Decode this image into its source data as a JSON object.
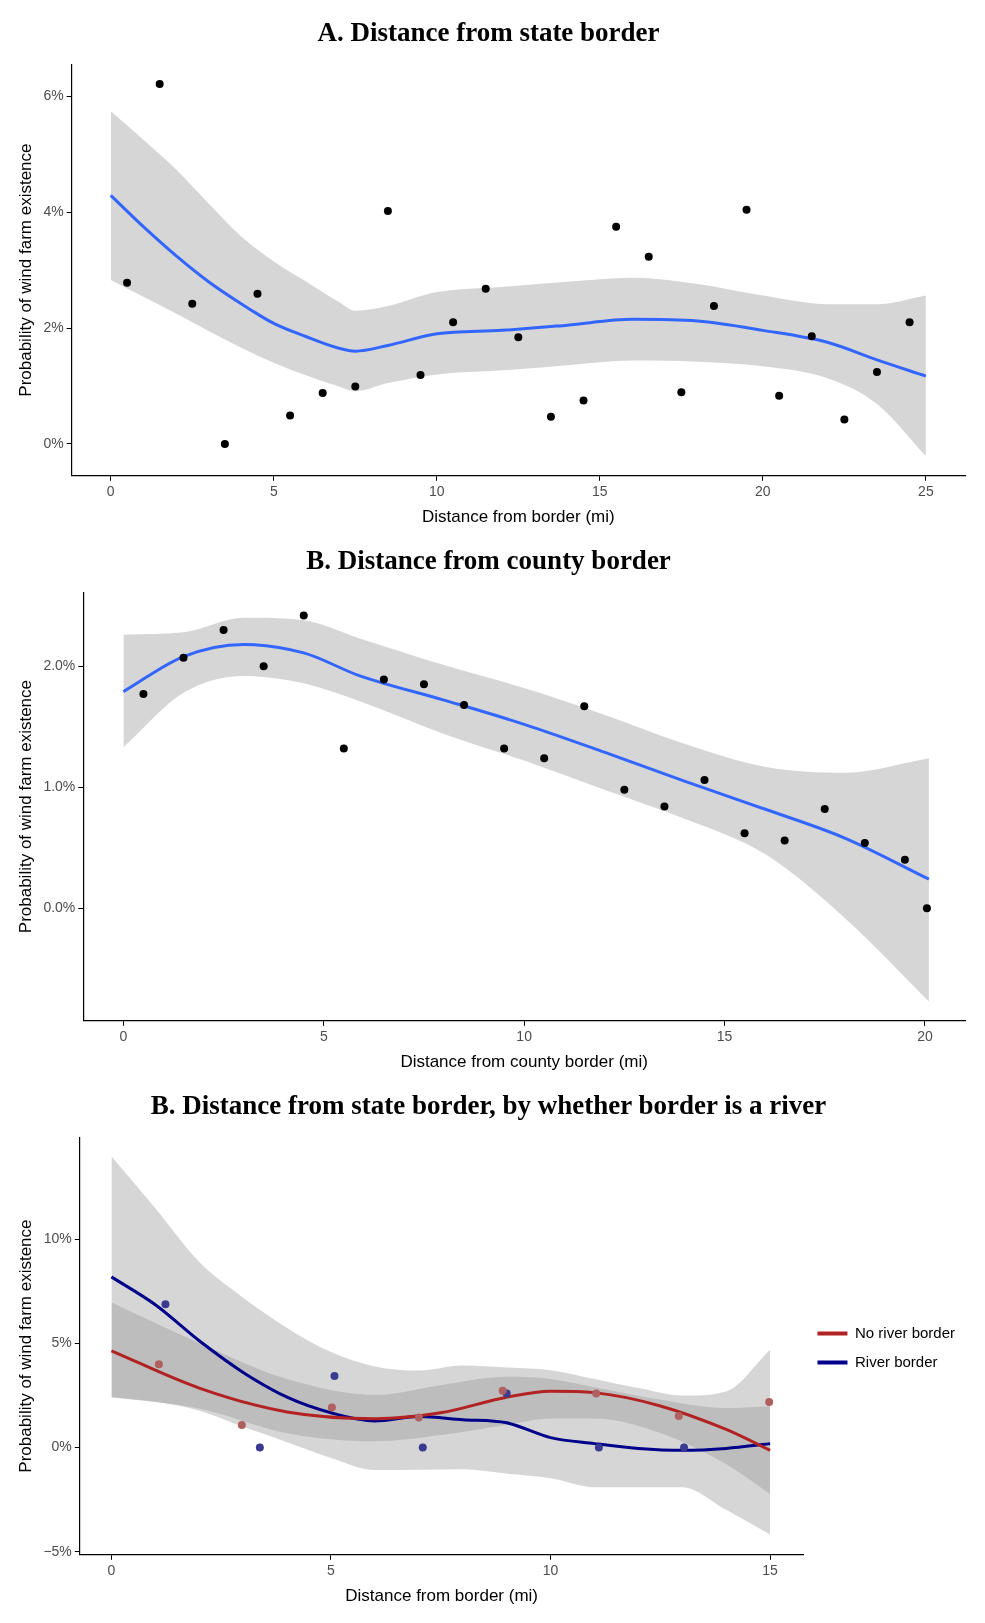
{
  "chart_data": [
    {
      "type": "scatter",
      "title": "A. Distance from state border",
      "xlabel": "Distance from border (mi)",
      "ylabel": "Probability of wind farm existence",
      "xlim": [
        -1.2,
        26.2
      ],
      "xticks": [
        0,
        5,
        10,
        15,
        20,
        25
      ],
      "ylim": [
        -0.55,
        6.55
      ],
      "yticks": [
        {
          "value": 0,
          "label": "0%"
        },
        {
          "value": 2,
          "label": "2%"
        },
        {
          "value": 4,
          "label": "4%"
        },
        {
          "value": 6,
          "label": "6%"
        }
      ],
      "series": [
        {
          "type": "scatter",
          "marker": "circle",
          "color": "#000000",
          "x": [
            0.5,
            1.5,
            2.5,
            3.5,
            4.5,
            5.5,
            6.5,
            7.5,
            8.5,
            9.5,
            10.5,
            11.5,
            12.5,
            13.5,
            14.5,
            15.5,
            16.5,
            17.5,
            18.5,
            19.5,
            20.5,
            21.5,
            22.5,
            23.5,
            24.5
          ],
          "values": [
            2.78,
            6.21,
            2.42,
            0,
            2.59,
            0.49,
            0.88,
            0.99,
            4.02,
            1.19,
            2.1,
            2.68,
            1.84,
            0.47,
            0.75,
            3.75,
            3.23,
            0.89,
            2.38,
            4.04,
            0.83,
            1.86,
            0.42,
            1.24,
            2.1
          ]
        },
        {
          "type": "line",
          "color": "#3366ff",
          "x": [
            0,
            1,
            2,
            3,
            4,
            5,
            6,
            7,
            7.5,
            8.5,
            10,
            12,
            14,
            16,
            18,
            20,
            22,
            23.5,
            25
          ],
          "values": [
            4.29,
            3.75,
            3.25,
            2.8,
            2.42,
            2.08,
            1.85,
            1.65,
            1.6,
            1.7,
            1.9,
            1.96,
            2.05,
            2.15,
            2.12,
            1.96,
            1.75,
            1.45,
            1.17
          ],
          "upper": [
            5.74,
            5.25,
            4.74,
            4.15,
            3.58,
            3.15,
            2.8,
            2.45,
            2.3,
            2.38,
            2.62,
            2.71,
            2.8,
            2.87,
            2.76,
            2.56,
            2.41,
            2.41,
            2.56
          ],
          "lower": [
            2.83,
            2.54,
            2.25,
            1.95,
            1.66,
            1.4,
            1.18,
            0.99,
            0.91,
            1.05,
            1.2,
            1.27,
            1.36,
            1.44,
            1.42,
            1.34,
            1.13,
            0.69,
            -0.21
          ]
        }
      ]
    },
    {
      "type": "scatter",
      "title": "B. Distance from county border",
      "xlabel": "Distance from county border (mi)",
      "ylabel": "Probability of wind farm existence",
      "xlim": [
        -1,
        21
      ],
      "xticks": [
        0,
        5,
        10,
        15,
        20
      ],
      "ylim": [
        -0.93,
        2.61
      ],
      "yticks": [
        {
          "value": 0,
          "label": "0.0%"
        },
        {
          "value": 1,
          "label": "1.0%"
        },
        {
          "value": 2,
          "label": "2.0%"
        }
      ],
      "series": [
        {
          "type": "scatter",
          "marker": "circle",
          "color": "#000000",
          "x": [
            0.5,
            1.5,
            2.5,
            3.5,
            4.5,
            5.5,
            6.5,
            7.5,
            8.5,
            9.5,
            10.5,
            11.5,
            12.5,
            13.5,
            14.5,
            15.5,
            16.5,
            17.5,
            18.5,
            19.5,
            20.05
          ],
          "values": [
            1.77,
            2.07,
            2.3,
            2,
            2.42,
            1.32,
            1.89,
            1.85,
            1.68,
            1.32,
            1.24,
            1.67,
            0.98,
            0.84,
            1.06,
            0.62,
            0.56,
            0.82,
            0.54,
            0.4,
            0
          ]
        },
        {
          "type": "line",
          "color": "#3366ff",
          "x": [
            0,
            1.5,
            3,
            4.5,
            5.9,
            8,
            10,
            12,
            14,
            16,
            18,
            20.1
          ],
          "values": [
            1.79,
            2.08,
            2.18,
            2.11,
            1.92,
            1.72,
            1.52,
            1.29,
            1.05,
            0.82,
            0.58,
            0.24
          ],
          "upper": [
            2.26,
            2.28,
            2.4,
            2.38,
            2.23,
            2.01,
            1.82,
            1.6,
            1.36,
            1.17,
            1.12,
            1.24
          ],
          "lower": [
            1.33,
            1.78,
            1.92,
            1.86,
            1.71,
            1.44,
            1.22,
            0.98,
            0.74,
            0.45,
            -0.08,
            -0.77
          ]
        }
      ]
    },
    {
      "type": "scatter",
      "title": "B. Distance from state border, by whether border is a river",
      "xlabel": "Distance from border (mi)",
      "ylabel": "Probability of wind farm existence",
      "xlim": [
        -0.72,
        15.76
      ],
      "xticks": [
        0,
        5,
        10,
        15
      ],
      "ylim": [
        -5.15,
        14.9
      ],
      "yticks": [
        {
          "value": -5,
          "label": "−5%"
        },
        {
          "value": 0,
          "label": "0%"
        },
        {
          "value": 5,
          "label": "5%"
        },
        {
          "value": 10,
          "label": "10%"
        }
      ],
      "legend": "right",
      "series": [
        {
          "type": "scatter",
          "marker": "circle",
          "color": "#b06060",
          "x": [
            1.08,
            2.97,
            5.02,
            7,
            8.91,
            11.04,
            12.92,
            14.98
          ],
          "values": [
            4,
            1.08,
            1.93,
            1.45,
            2.73,
            2.6,
            1.52,
            2.19
          ]
        },
        {
          "type": "scatter",
          "marker": "circle",
          "color": "#3a3a90",
          "x": [
            1.23,
            3.38,
            5.08,
            7.09,
            9,
            11.1,
            13.04
          ],
          "values": [
            6.88,
            0,
            3.44,
            0,
            2.6,
            0,
            0
          ]
        },
        {
          "type": "line",
          "name": "No river border",
          "color": "#b22222",
          "x": [
            0,
            2,
            4,
            6,
            7.5,
            9,
            10,
            11,
            12.5,
            14,
            15
          ],
          "values": [
            4.65,
            2.86,
            1.71,
            1.39,
            1.67,
            2.42,
            2.71,
            2.64,
            2,
            0.87,
            -0.13
          ],
          "upper": [
            6.97,
            5.02,
            3.29,
            2.53,
            3,
            3.4,
            3.3,
            2.9,
            2.3,
            1.9,
            1.99
          ],
          "lower": [
            2.42,
            1.88,
            0.69,
            0.3,
            0.6,
            1.1,
            1.4,
            1.4,
            0.7,
            -0.8,
            -2.23
          ]
        },
        {
          "type": "line",
          "name": "River border",
          "color": "#00008b",
          "x": [
            0,
            1,
            2,
            3,
            4,
            5,
            6,
            7,
            8,
            9,
            10,
            11,
            12,
            13,
            14,
            15
          ],
          "values": [
            8.2,
            6.86,
            5.13,
            3.61,
            2.42,
            1.67,
            1.28,
            1.49,
            1.34,
            1.19,
            0.48,
            0.19,
            -0.04,
            -0.13,
            -0.04,
            0.19
          ],
          "upper": [
            14,
            11.5,
            8.92,
            7.2,
            5.75,
            4.59,
            3.9,
            3.7,
            3.94,
            3.85,
            3.72,
            3.3,
            2.86,
            2.5,
            2.7,
            4.7
          ],
          "lower": [
            2.42,
            2.2,
            1.77,
            1,
            0.26,
            -0.5,
            -1.08,
            -1.06,
            -1.04,
            -1.25,
            -1.47,
            -1.9,
            -1.9,
            -1.9,
            -2.99,
            -4.18
          ]
        }
      ]
    }
  ]
}
